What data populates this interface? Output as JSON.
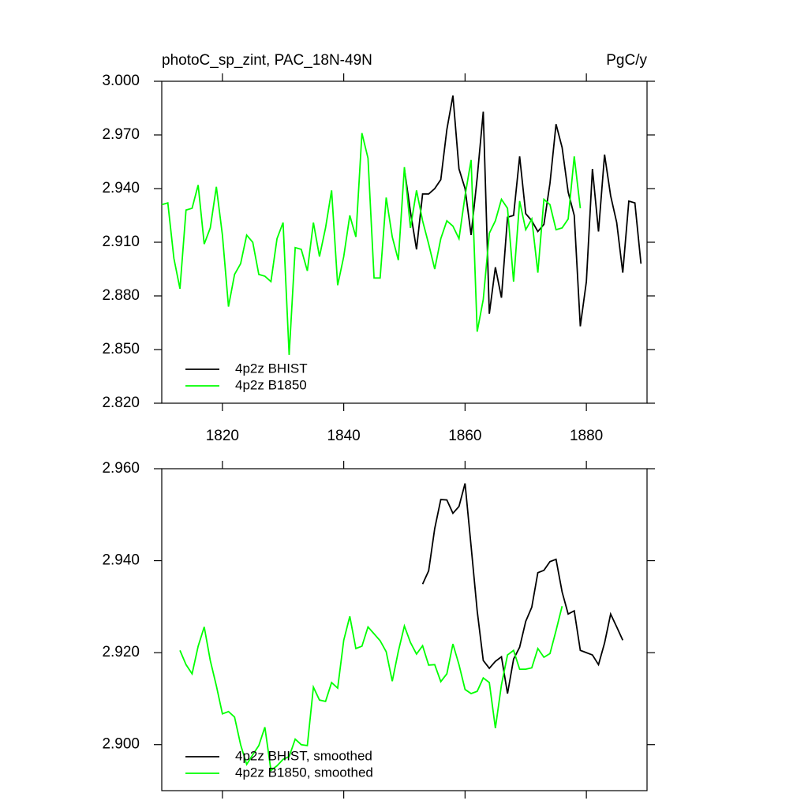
{
  "chart_data": [
    {
      "type": "line",
      "title": "photoC_sp_zint, PAC_18N-49N",
      "units": "PgC/y",
      "x": [
        1810,
        1811,
        1812,
        1813,
        1814,
        1815,
        1816,
        1817,
        1818,
        1819,
        1820,
        1821,
        1822,
        1823,
        1824,
        1825,
        1826,
        1827,
        1828,
        1829,
        1830,
        1831,
        1832,
        1833,
        1834,
        1835,
        1836,
        1837,
        1838,
        1839,
        1840,
        1841,
        1842,
        1843,
        1844,
        1845,
        1846,
        1847,
        1848,
        1849,
        1850,
        1851,
        1852,
        1853,
        1854,
        1855,
        1856,
        1857,
        1858,
        1859,
        1860,
        1861,
        1862,
        1863,
        1864,
        1865,
        1866,
        1867,
        1868,
        1869,
        1870,
        1871,
        1872,
        1873,
        1874,
        1875,
        1876,
        1877,
        1878,
        1879,
        1880,
        1881,
        1882,
        1883,
        1884,
        1885,
        1886,
        1887,
        1888,
        1889
      ],
      "xlim": [
        1810,
        1890
      ],
      "xticks": [
        1820,
        1840,
        1860,
        1880
      ],
      "show_xtick_labels": true,
      "ylim": [
        2.82,
        3.0
      ],
      "yticks": [
        {
          "value": 2.82,
          "label": "2.820"
        },
        {
          "value": 2.85,
          "label": "2.850"
        },
        {
          "value": 2.88,
          "label": "2.880"
        },
        {
          "value": 2.91,
          "label": "2.910"
        },
        {
          "value": 2.94,
          "label": "2.940"
        },
        {
          "value": 2.97,
          "label": "2.970"
        },
        {
          "value": 3.0,
          "label": "3.000"
        }
      ],
      "series": [
        {
          "name": "4p2z BHIST",
          "color": "#000000",
          "values": [
            null,
            null,
            null,
            null,
            null,
            null,
            null,
            null,
            null,
            null,
            null,
            null,
            null,
            null,
            null,
            null,
            null,
            null,
            null,
            null,
            null,
            null,
            null,
            null,
            null,
            null,
            null,
            null,
            null,
            null,
            null,
            null,
            null,
            null,
            null,
            null,
            null,
            null,
            null,
            null,
            2.951,
            2.927,
            2.906,
            2.937,
            2.937,
            2.94,
            2.945,
            2.973,
            2.992,
            2.951,
            2.94,
            2.914,
            2.946,
            2.983,
            2.87,
            2.896,
            2.879,
            2.924,
            2.925,
            2.958,
            2.926,
            2.922,
            2.916,
            2.92,
            2.943,
            2.976,
            2.963,
            2.938,
            2.925,
            2.863,
            2.888,
            2.951,
            2.916,
            2.959,
            2.936,
            2.921,
            2.893,
            2.933,
            2.932,
            2.898
          ]
        },
        {
          "name": "4p2z B1850",
          "color": "#00ff00",
          "values": [
            2.931,
            2.932,
            2.901,
            2.884,
            2.928,
            2.929,
            2.942,
            2.909,
            2.918,
            2.941,
            2.914,
            2.874,
            2.892,
            2.898,
            2.914,
            2.91,
            2.892,
            2.891,
            2.888,
            2.912,
            2.921,
            2.847,
            2.907,
            2.906,
            2.894,
            2.921,
            2.902,
            2.918,
            2.939,
            2.886,
            2.902,
            2.925,
            2.913,
            2.971,
            2.957,
            2.89,
            2.89,
            2.935,
            2.913,
            2.9,
            2.952,
            2.918,
            2.939,
            2.922,
            2.909,
            2.895,
            2.912,
            2.922,
            2.919,
            2.912,
            2.936,
            2.956,
            2.86,
            2.878,
            2.915,
            2.922,
            2.934,
            2.929,
            2.888,
            2.933,
            2.917,
            2.923,
            2.893,
            2.934,
            2.931,
            2.917,
            2.918,
            2.923,
            2.958,
            2.929,
            null,
            null,
            null,
            null,
            null,
            null,
            null,
            null,
            null,
            null
          ]
        }
      ]
    },
    {
      "type": "line",
      "x": [
        1810,
        1811,
        1812,
        1813,
        1814,
        1815,
        1816,
        1817,
        1818,
        1819,
        1820,
        1821,
        1822,
        1823,
        1824,
        1825,
        1826,
        1827,
        1828,
        1829,
        1830,
        1831,
        1832,
        1833,
        1834,
        1835,
        1836,
        1837,
        1838,
        1839,
        1840,
        1841,
        1842,
        1843,
        1844,
        1845,
        1846,
        1847,
        1848,
        1849,
        1850,
        1851,
        1852,
        1853,
        1854,
        1855,
        1856,
        1857,
        1858,
        1859,
        1860,
        1861,
        1862,
        1863,
        1864,
        1865,
        1866,
        1867,
        1868,
        1869,
        1870,
        1871,
        1872,
        1873,
        1874,
        1875,
        1876,
        1877,
        1878,
        1879,
        1880,
        1881,
        1882,
        1883,
        1884,
        1885,
        1886,
        1887,
        1888,
        1889
      ],
      "xlim": [
        1810,
        1890
      ],
      "xticks": [
        1820,
        1840,
        1860,
        1880
      ],
      "show_xtick_labels": false,
      "ylim": [
        2.89,
        2.96
      ],
      "yticks": [
        {
          "value": 2.9,
          "label": "2.900"
        },
        {
          "value": 2.92,
          "label": "2.920"
        },
        {
          "value": 2.94,
          "label": "2.940"
        },
        {
          "value": 2.96,
          "label": "2.960"
        }
      ],
      "series": [
        {
          "name": "4p2z BHIST, smoothed",
          "color": "#000000",
          "values": [
            null,
            null,
            null,
            null,
            null,
            null,
            null,
            null,
            null,
            null,
            null,
            null,
            null,
            null,
            null,
            null,
            null,
            null,
            null,
            null,
            null,
            null,
            null,
            null,
            null,
            null,
            null,
            null,
            null,
            null,
            null,
            null,
            null,
            null,
            null,
            null,
            null,
            null,
            null,
            null,
            null,
            null,
            null,
            2.9349,
            2.9378,
            2.947,
            2.9533,
            2.9532,
            2.9503,
            2.9518,
            2.9568,
            2.9431,
            2.9291,
            2.9183,
            2.9166,
            2.9181,
            2.9191,
            2.9111,
            2.9186,
            2.9212,
            2.9268,
            2.9299,
            2.9374,
            2.9379,
            2.9398,
            2.9403,
            2.9332,
            2.9284,
            2.9291,
            2.9205,
            2.92,
            2.9195,
            2.9174,
            2.9221,
            2.9284,
            2.9256,
            2.9227,
            null,
            null,
            null
          ]
        },
        {
          "name": "4p2z B1850, smoothed",
          "color": "#00ff00",
          "values": [
            null,
            null,
            null,
            2.9205,
            2.9174,
            2.9154,
            2.9214,
            2.9256,
            2.9183,
            2.9128,
            2.9067,
            2.9072,
            2.906,
            2.9,
            2.8957,
            2.8978,
            2.8998,
            2.9038,
            2.8944,
            2.8954,
            2.8968,
            2.8974,
            2.9012,
            2.9,
            2.8998,
            2.9125,
            2.9097,
            2.9094,
            2.9135,
            2.9123,
            2.9227,
            2.9279,
            2.9209,
            2.9214,
            2.9256,
            2.9241,
            2.9226,
            2.9202,
            2.9138,
            2.9203,
            2.9258,
            2.9222,
            2.9197,
            2.9215,
            2.9173,
            2.9174,
            2.9137,
            2.9154,
            2.9219,
            2.9174,
            2.912,
            2.9111,
            2.9116,
            2.9145,
            2.9135,
            2.9036,
            2.913,
            2.9195,
            2.9205,
            2.9164,
            2.9164,
            2.9167,
            2.9209,
            2.919,
            2.9198,
            2.9248,
            2.9301,
            null,
            null,
            null,
            null,
            null,
            null,
            null,
            null,
            null,
            null,
            null,
            null,
            null
          ]
        }
      ]
    }
  ]
}
